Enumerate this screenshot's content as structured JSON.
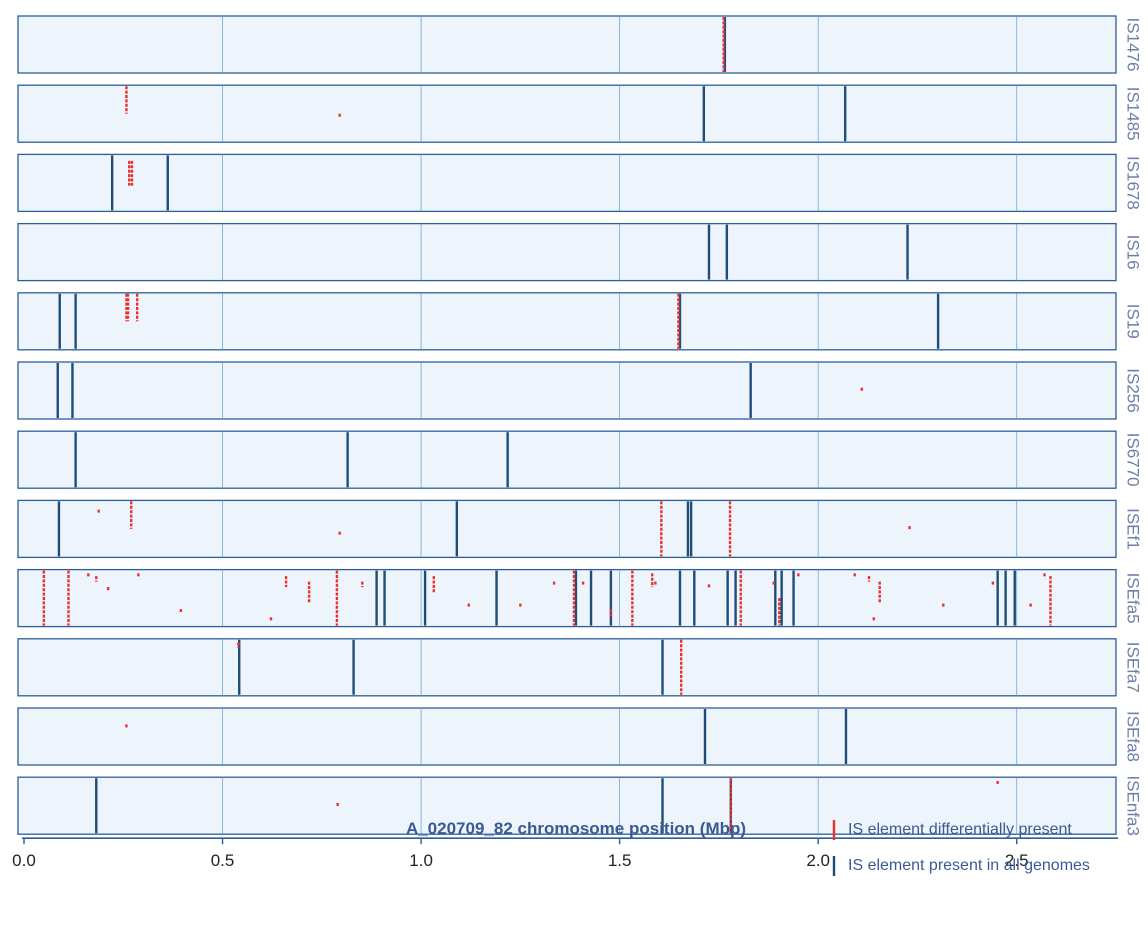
{
  "chart_data": {
    "type": "scatter",
    "xlabel": "A_020709_82 chromosome position (Mbp)",
    "xlim": [
      0,
      2.75
    ],
    "xticks": [
      "0.0",
      "0.5",
      "1.0",
      "1.5",
      "2.0",
      "2.5"
    ],
    "xtick_values": [
      0,
      0.5,
      1.0,
      1.5,
      2.0,
      2.5
    ],
    "grid": true,
    "legend_position": "bottom-right",
    "legend": [
      {
        "label": "IS element differentially present",
        "color": "#e8312f"
      },
      {
        "label": "IS element present in all genomes",
        "color": "#1e4d78"
      }
    ],
    "colors": {
      "differential": "#e8312f",
      "all": "#1e4d78",
      "panel_bg": "#eef4fb",
      "panel_border": "#2d5f96",
      "grid": "#5b9bd5"
    },
    "tracks": [
      {
        "name": "IS1476",
        "all": [
          1.765
        ],
        "differential": [
          {
            "x": 1.762,
            "y0": 0.0,
            "y1": 1.0
          }
        ]
      },
      {
        "name": "IS1485",
        "all": [
          1.712,
          2.068
        ],
        "differential": [
          {
            "x": 0.258,
            "y0": 0.0,
            "y1": 0.5
          },
          {
            "x": 0.795,
            "y0": 0.5,
            "y1": 0.55
          }
        ]
      },
      {
        "name": "IS1678",
        "all": [
          0.222,
          0.362
        ],
        "differential": [
          {
            "x": 0.265,
            "y0": 0.1,
            "y1": 0.55
          },
          {
            "x": 0.272,
            "y0": 0.1,
            "y1": 0.55
          }
        ]
      },
      {
        "name": "IS16",
        "all": [
          1.725,
          1.77,
          2.225
        ],
        "differential": []
      },
      {
        "name": "IS19",
        "all": [
          0.09,
          0.13,
          1.652,
          2.302
        ],
        "differential": [
          {
            "x": 0.258,
            "y0": 0.0,
            "y1": 0.5
          },
          {
            "x": 0.262,
            "y0": 0.0,
            "y1": 0.5
          },
          {
            "x": 0.285,
            "y0": 0.0,
            "y1": 0.5
          },
          {
            "x": 1.648,
            "y0": 0.0,
            "y1": 1.0
          }
        ]
      },
      {
        "name": "IS256",
        "all": [
          0.085,
          0.122,
          1.83
        ],
        "differential": [
          {
            "x": 2.11,
            "y0": 0.45,
            "y1": 0.52
          }
        ]
      },
      {
        "name": "IS6770",
        "all": [
          0.13,
          0.815,
          1.218
        ],
        "differential": []
      },
      {
        "name": "ISEf1",
        "all": [
          0.088,
          1.09,
          1.672,
          1.68
        ],
        "differential": [
          {
            "x": 0.188,
            "y0": 0.15,
            "y1": 0.22
          },
          {
            "x": 0.27,
            "y0": 0.0,
            "y1": 0.5
          },
          {
            "x": 0.795,
            "y0": 0.55,
            "y1": 0.62
          },
          {
            "x": 1.605,
            "y0": 0.0,
            "y1": 1.0
          },
          {
            "x": 1.778,
            "y0": 0.0,
            "y1": 1.0
          },
          {
            "x": 2.23,
            "y0": 0.45,
            "y1": 0.52
          }
        ]
      },
      {
        "name": "ISEfa5",
        "all": [
          0.888,
          0.908,
          1.01,
          1.19,
          1.39,
          1.428,
          1.478,
          1.652,
          1.688,
          1.772,
          1.792,
          1.892,
          1.908,
          1.938,
          2.452,
          2.472,
          2.495
        ],
        "differential": [
          {
            "x": 0.05,
            "y0": 0.0,
            "y1": 1.0
          },
          {
            "x": 0.112,
            "y0": 0.0,
            "y1": 1.0
          },
          {
            "x": 0.162,
            "y0": 0.05,
            "y1": 0.1
          },
          {
            "x": 0.182,
            "y0": 0.1,
            "y1": 0.2
          },
          {
            "x": 0.212,
            "y0": 0.3,
            "y1": 0.35
          },
          {
            "x": 0.288,
            "y0": 0.05,
            "y1": 0.1
          },
          {
            "x": 0.395,
            "y0": 0.7,
            "y1": 0.75
          },
          {
            "x": 0.622,
            "y0": 0.85,
            "y1": 0.9
          },
          {
            "x": 0.66,
            "y0": 0.1,
            "y1": 0.3
          },
          {
            "x": 0.718,
            "y0": 0.2,
            "y1": 0.6
          },
          {
            "x": 0.788,
            "y0": 0.0,
            "y1": 1.0
          },
          {
            "x": 0.852,
            "y0": 0.2,
            "y1": 0.3
          },
          {
            "x": 1.032,
            "y0": 0.1,
            "y1": 0.4
          },
          {
            "x": 1.12,
            "y0": 0.6,
            "y1": 0.65
          },
          {
            "x": 1.25,
            "y0": 0.6,
            "y1": 0.65
          },
          {
            "x": 1.335,
            "y0": 0.2,
            "y1": 0.25
          },
          {
            "x": 1.385,
            "y0": 0.0,
            "y1": 1.0
          },
          {
            "x": 1.408,
            "y0": 0.2,
            "y1": 0.25
          },
          {
            "x": 1.478,
            "y0": 0.7,
            "y1": 0.85
          },
          {
            "x": 1.532,
            "y0": 0.0,
            "y1": 1.0
          },
          {
            "x": 1.582,
            "y0": 0.05,
            "y1": 0.3
          },
          {
            "x": 1.59,
            "y0": 0.2,
            "y1": 0.25
          },
          {
            "x": 1.725,
            "y0": 0.25,
            "y1": 0.3
          },
          {
            "x": 1.805,
            "y0": 0.0,
            "y1": 1.0
          },
          {
            "x": 1.888,
            "y0": 0.2,
            "y1": 0.25
          },
          {
            "x": 1.902,
            "y0": 0.5,
            "y1": 1.0
          },
          {
            "x": 1.95,
            "y0": 0.05,
            "y1": 0.1
          },
          {
            "x": 2.092,
            "y0": 0.05,
            "y1": 0.1
          },
          {
            "x": 2.128,
            "y0": 0.1,
            "y1": 0.2
          },
          {
            "x": 2.14,
            "y0": 0.85,
            "y1": 0.9
          },
          {
            "x": 2.155,
            "y0": 0.2,
            "y1": 0.6
          },
          {
            "x": 2.315,
            "y0": 0.6,
            "y1": 0.65
          },
          {
            "x": 2.44,
            "y0": 0.2,
            "y1": 0.25
          },
          {
            "x": 2.535,
            "y0": 0.6,
            "y1": 0.65
          },
          {
            "x": 2.57,
            "y0": 0.05,
            "y1": 0.1
          },
          {
            "x": 2.585,
            "y0": 0.1,
            "y1": 1.0
          }
        ]
      },
      {
        "name": "ISEfa7",
        "all": [
          0.542,
          0.83,
          1.608
        ],
        "differential": [
          {
            "x": 0.54,
            "y0": 0.05,
            "y1": 0.15
          },
          {
            "x": 1.655,
            "y0": 0.0,
            "y1": 1.0
          }
        ]
      },
      {
        "name": "ISEfa8",
        "all": [
          1.715,
          2.07
        ],
        "differential": [
          {
            "x": 0.258,
            "y0": 0.28,
            "y1": 0.34
          }
        ]
      },
      {
        "name": "ISEnfa3",
        "all": [
          0.182,
          1.608,
          1.78
        ],
        "differential": [
          {
            "x": 0.79,
            "y0": 0.45,
            "y1": 0.52
          },
          {
            "x": 1.78,
            "y0": 0.0,
            "y1": 1.0
          },
          {
            "x": 2.452,
            "y0": 0.05,
            "y1": 0.12
          }
        ]
      }
    ]
  }
}
